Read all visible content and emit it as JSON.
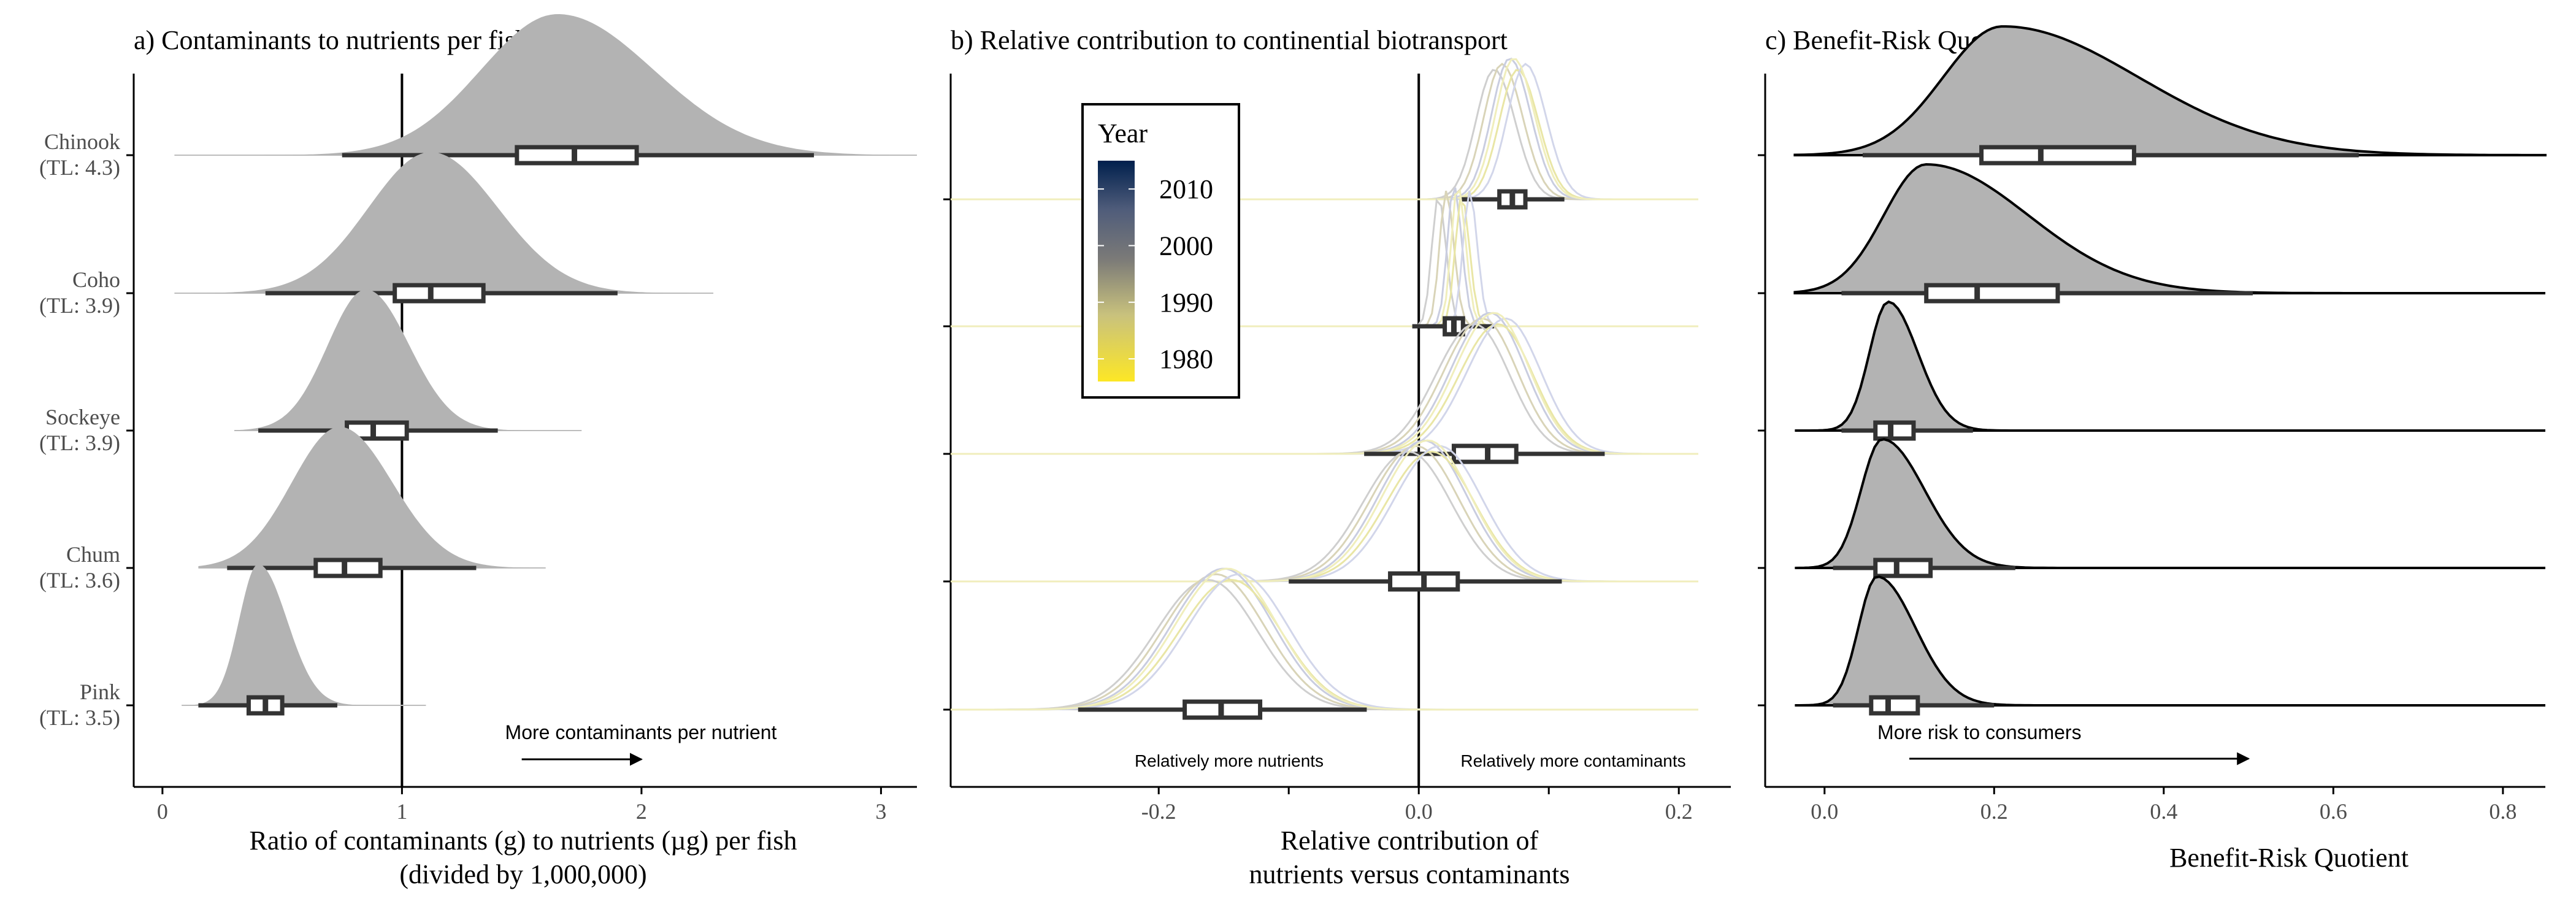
{
  "colors": {
    "density_fill": "#b3b3b3",
    "box_stroke": "#333333",
    "axis": "#000000",
    "trace_colors": [
      "#cfcfcf",
      "#d9d4b8",
      "#c9cde0",
      "#e9e6a6",
      "#d2d6ea",
      "#f0eebc"
    ],
    "year_gradient": [
      "#fde725",
      "#c9c27d",
      "#7c7b78",
      "#4f5c7a",
      "#00204d"
    ]
  },
  "chart_data": [
    {
      "id": "a",
      "type": "ridgeline-boxplot",
      "title": "a) Contaminants to nutrients per fish",
      "xlabel_lines": [
        "Ratio of contaminants (g) to nutrients (µg) per fish",
        "(divided by 1,000,000)"
      ],
      "xlim": [
        -0.12,
        3.15
      ],
      "xticks": [
        0,
        1,
        2,
        3
      ],
      "xtick_labels": [
        "0",
        "1",
        "2",
        "3"
      ],
      "ref_line_x": 1,
      "annotation": {
        "text": "More contaminants per nutrient",
        "arrow_from": 1.5,
        "arrow_to": 2.0
      },
      "rows": [
        {
          "label": "Chinook",
          "tl": "(TL: 4.3)",
          "q1": 1.48,
          "median": 1.72,
          "q3": 1.98,
          "wmin": 0.75,
          "wmax": 2.72,
          "peak": 1.65,
          "sd_left": 0.32,
          "sd_right": 0.4,
          "dmin": 0.05,
          "dmax": 3.15
        },
        {
          "label": "Coho",
          "tl": "(TL: 3.9)",
          "q1": 0.97,
          "median": 1.12,
          "q3": 1.34,
          "wmin": 0.43,
          "wmax": 1.9,
          "peak": 1.12,
          "sd_left": 0.26,
          "sd_right": 0.28,
          "dmin": 0.05,
          "dmax": 2.3
        },
        {
          "label": "Sockeye",
          "tl": "(TL: 3.9)",
          "q1": 0.77,
          "median": 0.88,
          "q3": 1.02,
          "wmin": 0.4,
          "wmax": 1.4,
          "peak": 0.85,
          "sd_left": 0.16,
          "sd_right": 0.18,
          "dmin": 0.3,
          "dmax": 1.75
        },
        {
          "label": "Chum",
          "tl": "(TL: 3.6)",
          "q1": 0.64,
          "median": 0.76,
          "q3": 0.91,
          "wmin": 0.27,
          "wmax": 1.31,
          "peak": 0.74,
          "sd_left": 0.2,
          "sd_right": 0.22,
          "dmin": 0.15,
          "dmax": 1.6
        },
        {
          "label": "Pink",
          "tl": "(TL: 3.5)",
          "q1": 0.36,
          "median": 0.43,
          "q3": 0.5,
          "wmin": 0.15,
          "wmax": 0.73,
          "peak": 0.4,
          "sd_left": 0.08,
          "sd_right": 0.12,
          "dmin": 0.08,
          "dmax": 1.1
        }
      ]
    },
    {
      "id": "b",
      "type": "ridgeline-boxplot",
      "title": "b) Relative contribution to continential biotransport",
      "xlabel_lines": [
        "Relative contribution of",
        "nutrients versus contaminants"
      ],
      "xlim": [
        -0.36,
        0.24
      ],
      "xticks": [
        -0.2,
        -0.1,
        0.0,
        0.1,
        0.2
      ],
      "xtick_labels": [
        "-0.2",
        "",
        "0.0",
        "",
        "0.2"
      ],
      "ref_line_x": 0,
      "annotation_left": "Relatively more nutrients",
      "annotation_right": "Relatively more contaminants",
      "legend": {
        "title": "Year",
        "labels": [
          "2010",
          "2000",
          "1990",
          "1980"
        ],
        "values": [
          2010,
          2000,
          1990,
          1980
        ],
        "range": [
          1976,
          2015
        ]
      },
      "rows": [
        {
          "q1": 0.062,
          "median": 0.072,
          "q3": 0.082,
          "wmin": 0.032,
          "wmax": 0.112,
          "peak": 0.07,
          "sd_left": 0.014,
          "sd_right": 0.016,
          "dmin": -0.36,
          "dmax": 0.215
        },
        {
          "q1": 0.02,
          "median": 0.027,
          "q3": 0.034,
          "wmin": -0.005,
          "wmax": 0.058,
          "peak": 0.027,
          "sd_left": 0.005,
          "sd_right": 0.006,
          "dmin": -0.36,
          "dmax": 0.215
        },
        {
          "q1": 0.027,
          "median": 0.053,
          "q3": 0.075,
          "wmin": -0.042,
          "wmax": 0.143,
          "peak": 0.055,
          "sd_left": 0.03,
          "sd_right": 0.027,
          "dmin": -0.36,
          "dmax": 0.215
        },
        {
          "q1": -0.022,
          "median": 0.004,
          "q3": 0.03,
          "wmin": -0.1,
          "wmax": 0.11,
          "peak": 0.004,
          "sd_left": 0.035,
          "sd_right": 0.033,
          "dmin": -0.36,
          "dmax": 0.215
        },
        {
          "q1": -0.18,
          "median": -0.152,
          "q3": -0.122,
          "wmin": -0.262,
          "wmax": -0.04,
          "peak": -0.15,
          "sd_left": 0.04,
          "sd_right": 0.038,
          "dmin": -0.36,
          "dmax": 0.215
        }
      ]
    },
    {
      "id": "c",
      "type": "ridgeline-boxplot",
      "title": "c) Benefit-Risk Quotient",
      "xlabel_lines": [
        "Benefit-Risk Quotient"
      ],
      "xlim": [
        -0.07,
        0.85
      ],
      "xticks": [
        0.0,
        0.2,
        0.4,
        0.6,
        0.8
      ],
      "xtick_labels": [
        "0.0",
        "0.2",
        "0.4",
        "0.6",
        "0.8"
      ],
      "annotation": {
        "text": "More risk to consumers",
        "arrow_from": 0.1,
        "arrow_to": 0.5
      },
      "rows": [
        {
          "q1": 0.185,
          "median": 0.255,
          "q3": 0.365,
          "wmin": 0.045,
          "wmax": 0.63,
          "peak": 0.21,
          "sd_left": 0.07,
          "sd_right": 0.16,
          "dmin": -0.035,
          "dmax": 0.85
        },
        {
          "q1": 0.12,
          "median": 0.18,
          "q3": 0.275,
          "wmin": 0.02,
          "wmax": 0.505,
          "peak": 0.12,
          "sd_left": 0.05,
          "sd_right": 0.12,
          "dmin": -0.035,
          "dmax": 0.85
        },
        {
          "q1": 0.06,
          "median": 0.078,
          "q3": 0.105,
          "wmin": 0.02,
          "wmax": 0.175,
          "peak": 0.075,
          "sd_left": 0.022,
          "sd_right": 0.035,
          "dmin": -0.035,
          "dmax": 0.85
        },
        {
          "q1": 0.06,
          "median": 0.085,
          "q3": 0.125,
          "wmin": 0.01,
          "wmax": 0.225,
          "peak": 0.068,
          "sd_left": 0.025,
          "sd_right": 0.05,
          "dmin": -0.035,
          "dmax": 0.85
        },
        {
          "q1": 0.055,
          "median": 0.075,
          "q3": 0.11,
          "wmin": 0.01,
          "wmax": 0.2,
          "peak": 0.062,
          "sd_left": 0.022,
          "sd_right": 0.045,
          "dmin": -0.035,
          "dmax": 0.85
        }
      ]
    }
  ]
}
